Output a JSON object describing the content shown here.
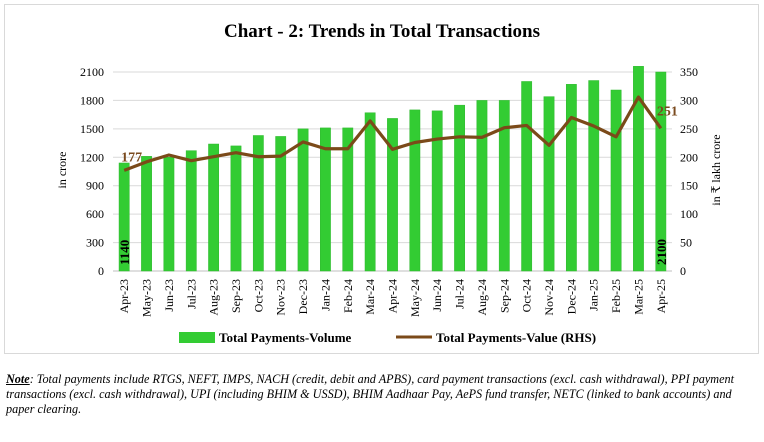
{
  "chart_data": {
    "type": "bar",
    "title": "Chart - 2: Trends in Total Transactions",
    "categories": [
      "Apr-23",
      "May-23",
      "Jun-23",
      "Jul-23",
      "Aug-23",
      "Sep-23",
      "Oct-23",
      "Nov-23",
      "Dec-23",
      "Jan-24",
      "Feb-24",
      "Mar-24",
      "Apr-24",
      "May-24",
      "Jun-24",
      "Jul-24",
      "Aug-24",
      "Sep-24",
      "Oct-24",
      "Nov-24",
      "Dec-24",
      "Jan-25",
      "Feb-25",
      "Mar-25",
      "Apr-25"
    ],
    "ylabel": "in crore",
    "y2label": "in ₹ lakh crore",
    "ylim": [
      0,
      2100
    ],
    "y2lim": [
      0,
      350
    ],
    "yticks": [
      0,
      300,
      600,
      900,
      1200,
      1500,
      1800,
      2100
    ],
    "y2ticks": [
      0,
      50,
      100,
      150,
      200,
      250,
      300,
      350
    ],
    "series": [
      {
        "name": "Total Payments-Volume",
        "type": "bar",
        "axis": "left",
        "color": "#33cc33",
        "values": [
          1140,
          1210,
          1200,
          1270,
          1340,
          1320,
          1430,
          1420,
          1500,
          1510,
          1510,
          1670,
          1610,
          1700,
          1690,
          1750,
          1800,
          1800,
          2000,
          1840,
          1970,
          2010,
          1910,
          2160,
          2100
        ]
      },
      {
        "name": "Total Payments-Value (RHS)",
        "type": "line",
        "axis": "right",
        "color": "#7b4a19",
        "values": [
          177,
          192,
          204,
          194,
          201,
          208,
          201,
          202,
          227,
          215,
          215,
          264,
          214,
          226,
          232,
          236,
          235,
          252,
          256,
          221,
          270,
          255,
          236,
          306,
          251
        ]
      }
    ],
    "data_labels": {
      "first_bar": "1140",
      "last_bar": "2100",
      "first_line": "177",
      "last_line": "251"
    },
    "legend_position": "bottom",
    "grid": "horizontal"
  },
  "note": {
    "label": "Note",
    "text": ": Total payments include RTGS, NEFT, IMPS, NACH (credit, debit and APBS), card payment transactions (excl. cash withdrawal), PPI payment transactions (excl. cash withdrawal), UPI (including BHIM & USSD), BHIM Aadhaar Pay, AePS fund transfer, NETC (linked to bank accounts) and paper clearing."
  }
}
